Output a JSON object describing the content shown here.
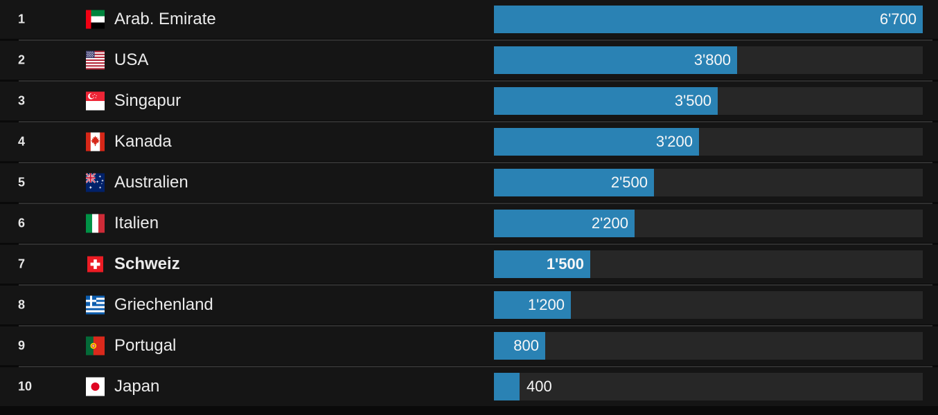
{
  "chart_data": {
    "type": "bar",
    "orientation": "horizontal",
    "value_axis_max": 6700,
    "grid": false,
    "legend": false,
    "number_format": "swiss-apostrophe",
    "categories": [
      "Arab. Emirate",
      "USA",
      "Singapur",
      "Kanada",
      "Australien",
      "Italien",
      "Schweiz",
      "Griechenland",
      "Portugal",
      "Japan"
    ],
    "values": [
      6700,
      3800,
      3500,
      3200,
      2500,
      2200,
      1500,
      1200,
      800,
      400
    ],
    "rows": [
      {
        "rank": "1",
        "country": "Arab. Emirate",
        "flag_icon": "ae",
        "value": 6700,
        "value_label": "6'700",
        "highlight": false
      },
      {
        "rank": "2",
        "country": "USA",
        "flag_icon": "us",
        "value": 3800,
        "value_label": "3'800",
        "highlight": false
      },
      {
        "rank": "3",
        "country": "Singapur",
        "flag_icon": "sg",
        "value": 3500,
        "value_label": "3'500",
        "highlight": false
      },
      {
        "rank": "4",
        "country": "Kanada",
        "flag_icon": "ca",
        "value": 3200,
        "value_label": "3'200",
        "highlight": false
      },
      {
        "rank": "5",
        "country": "Australien",
        "flag_icon": "au",
        "value": 2500,
        "value_label": "2'500",
        "highlight": false
      },
      {
        "rank": "6",
        "country": "Italien",
        "flag_icon": "it",
        "value": 2200,
        "value_label": "2'200",
        "highlight": false
      },
      {
        "rank": "7",
        "country": "Schweiz",
        "flag_icon": "ch",
        "value": 1500,
        "value_label": "1'500",
        "highlight": true
      },
      {
        "rank": "8",
        "country": "Griechenland",
        "flag_icon": "gr",
        "value": 1200,
        "value_label": "1'200",
        "highlight": false
      },
      {
        "rank": "9",
        "country": "Portugal",
        "flag_icon": "pt",
        "value": 800,
        "value_label": "800",
        "highlight": false
      },
      {
        "rank": "10",
        "country": "Japan",
        "flag_icon": "jp",
        "value": 400,
        "value_label": "400",
        "highlight": false
      }
    ],
    "colors": {
      "bar_fill": "#2a82b4",
      "bar_track": "#272727",
      "row_background": "#151515",
      "page_background": "#0a0a0a",
      "separator_line": "#2f2f2f",
      "text": "#ebebeb"
    }
  }
}
